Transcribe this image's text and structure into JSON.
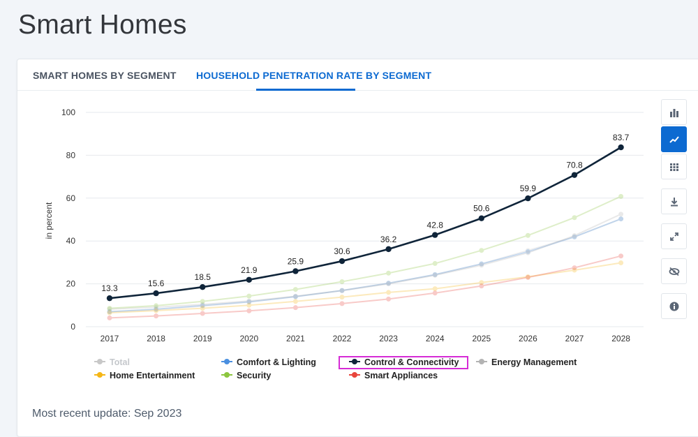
{
  "page": {
    "title": "Smart Homes",
    "update": "Most recent update: Sep 2023"
  },
  "tabs": [
    {
      "label": "SMART HOMES BY SEGMENT",
      "active": false
    },
    {
      "label": "HOUSEHOLD PENETRATION RATE BY SEGMENT",
      "active": true
    }
  ],
  "toolbar": [
    "bar-chart-icon",
    "line-chart-icon",
    "table-icon",
    "download-icon",
    "expand-icon",
    "hide-icon",
    "info-icon"
  ],
  "chart_data": {
    "type": "line",
    "title": "",
    "xlabel": "",
    "ylabel": "in percent",
    "ylim": [
      0,
      100
    ],
    "yticks": [
      0,
      20,
      40,
      60,
      80,
      100
    ],
    "categories": [
      "2017",
      "2018",
      "2019",
      "2020",
      "2021",
      "2022",
      "2023",
      "2024",
      "2025",
      "2026",
      "2027",
      "2028"
    ],
    "series": [
      {
        "name": "Total",
        "color": "#c8c8c8",
        "faded": true,
        "legend_faded": true,
        "show_labels": false,
        "values": [
          7.0,
          8.0,
          9.6,
          11.5,
          14.1,
          16.9,
          20.3,
          24.3,
          29.3,
          35.6,
          41.9,
          50.3
        ]
      },
      {
        "name": "Comfort & Lighting",
        "color": "#4a8fe0",
        "faded": true,
        "show_labels": false,
        "values": [
          7.0,
          8.2,
          9.9,
          11.6,
          14.0,
          16.9,
          20.3,
          24.3,
          29.3,
          35.0,
          41.9,
          50.3
        ]
      },
      {
        "name": "Control & Connectivity",
        "color": "#0f2439",
        "faded": false,
        "show_labels": true,
        "highlight": true,
        "values": [
          13.3,
          15.6,
          18.5,
          21.9,
          25.9,
          30.6,
          36.2,
          42.8,
          50.6,
          59.9,
          70.8,
          83.7
        ]
      },
      {
        "name": "Energy Management",
        "color": "#b3b3b3",
        "faded": true,
        "show_labels": false,
        "values": [
          8.2,
          9.1,
          10.4,
          12.0,
          14.2,
          16.8,
          20.0,
          24.0,
          28.7,
          34.5,
          42.5,
          52.5
        ]
      },
      {
        "name": "Home Entertainment",
        "color": "#f5b617",
        "faded": true,
        "show_labels": false,
        "values": [
          6.5,
          7.5,
          8.6,
          10.0,
          11.8,
          13.8,
          16.0,
          17.7,
          20.6,
          23.3,
          26.4,
          29.8
        ]
      },
      {
        "name": "Security",
        "color": "#8cc63f",
        "faded": true,
        "show_labels": false,
        "values": [
          8.6,
          9.8,
          11.8,
          14.3,
          17.4,
          21.0,
          25.0,
          29.5,
          35.6,
          42.6,
          50.9,
          60.8
        ]
      },
      {
        "name": "Smart Appliances",
        "color": "#e8453c",
        "faded": true,
        "show_labels": false,
        "values": [
          4.1,
          5.0,
          6.2,
          7.4,
          8.9,
          10.8,
          12.9,
          15.7,
          19.0,
          23.0,
          27.5,
          33.0
        ]
      }
    ]
  }
}
